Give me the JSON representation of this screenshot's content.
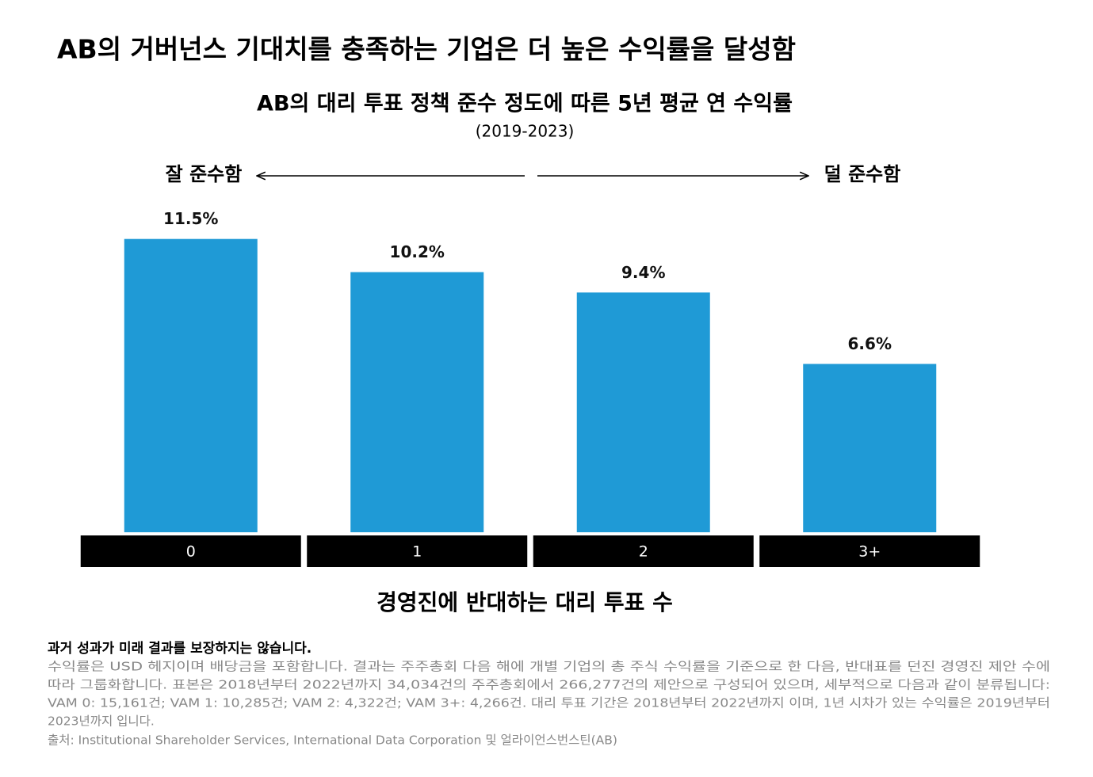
{
  "chart_data": {
    "type": "bar",
    "title": "AB의 거버넌스 기대치를 충족하는 기업은 더 높은 수익률을 달성함",
    "subtitle": "AB의 대리 투표 정책 준수 정도에 따른 5년 평균 연 수익률",
    "period": "(2019-2023)",
    "left_annotation": "잘 준수함",
    "right_annotation": "덜 준수함",
    "x_label": "경영진에 반대하는 대리 투표 수",
    "categories": [
      "0",
      "1",
      "2",
      "3+"
    ],
    "values": [
      11.5,
      10.2,
      9.4,
      6.6
    ],
    "value_labels": [
      "11.5%",
      "10.2%",
      "9.4%",
      "6.6%"
    ],
    "color": "#1f9ad6"
  },
  "notes": {
    "disclaimer": "과거 성과가 미래 결과를 보장하지는 않습니다.",
    "lines": [
      "수익률은 USD 헤지이며 배당금을 포함합니다. 결과는 주주총회 다음 해에 개별 기업의 총 주식 수익률을 기준으로 한 다음, 반대표를 던진 경영진 제안 수에",
      "따라 그룹화합니다. 표본은 2018년부터 2022년까지 34,034건의 주주총회에서 266,277건의 제안으로 구성되어 있으며, 세부적으로 다음과 같이 분류됩니다:",
      "VAM 0: 15,161건; VAM 1: 10,285건; VAM 2: 4,322건; VAM 3+: 4,266건. 대리 투표 기간은 2018년부터 2022년까지 이며, 1년 시차가 있는 수익률은 2019년부터",
      "2023년까지 입니다."
    ],
    "source": "출처: Institutional Shareholder Services, International Data Corporation 및 얼라이언스번스틴(AB)"
  }
}
